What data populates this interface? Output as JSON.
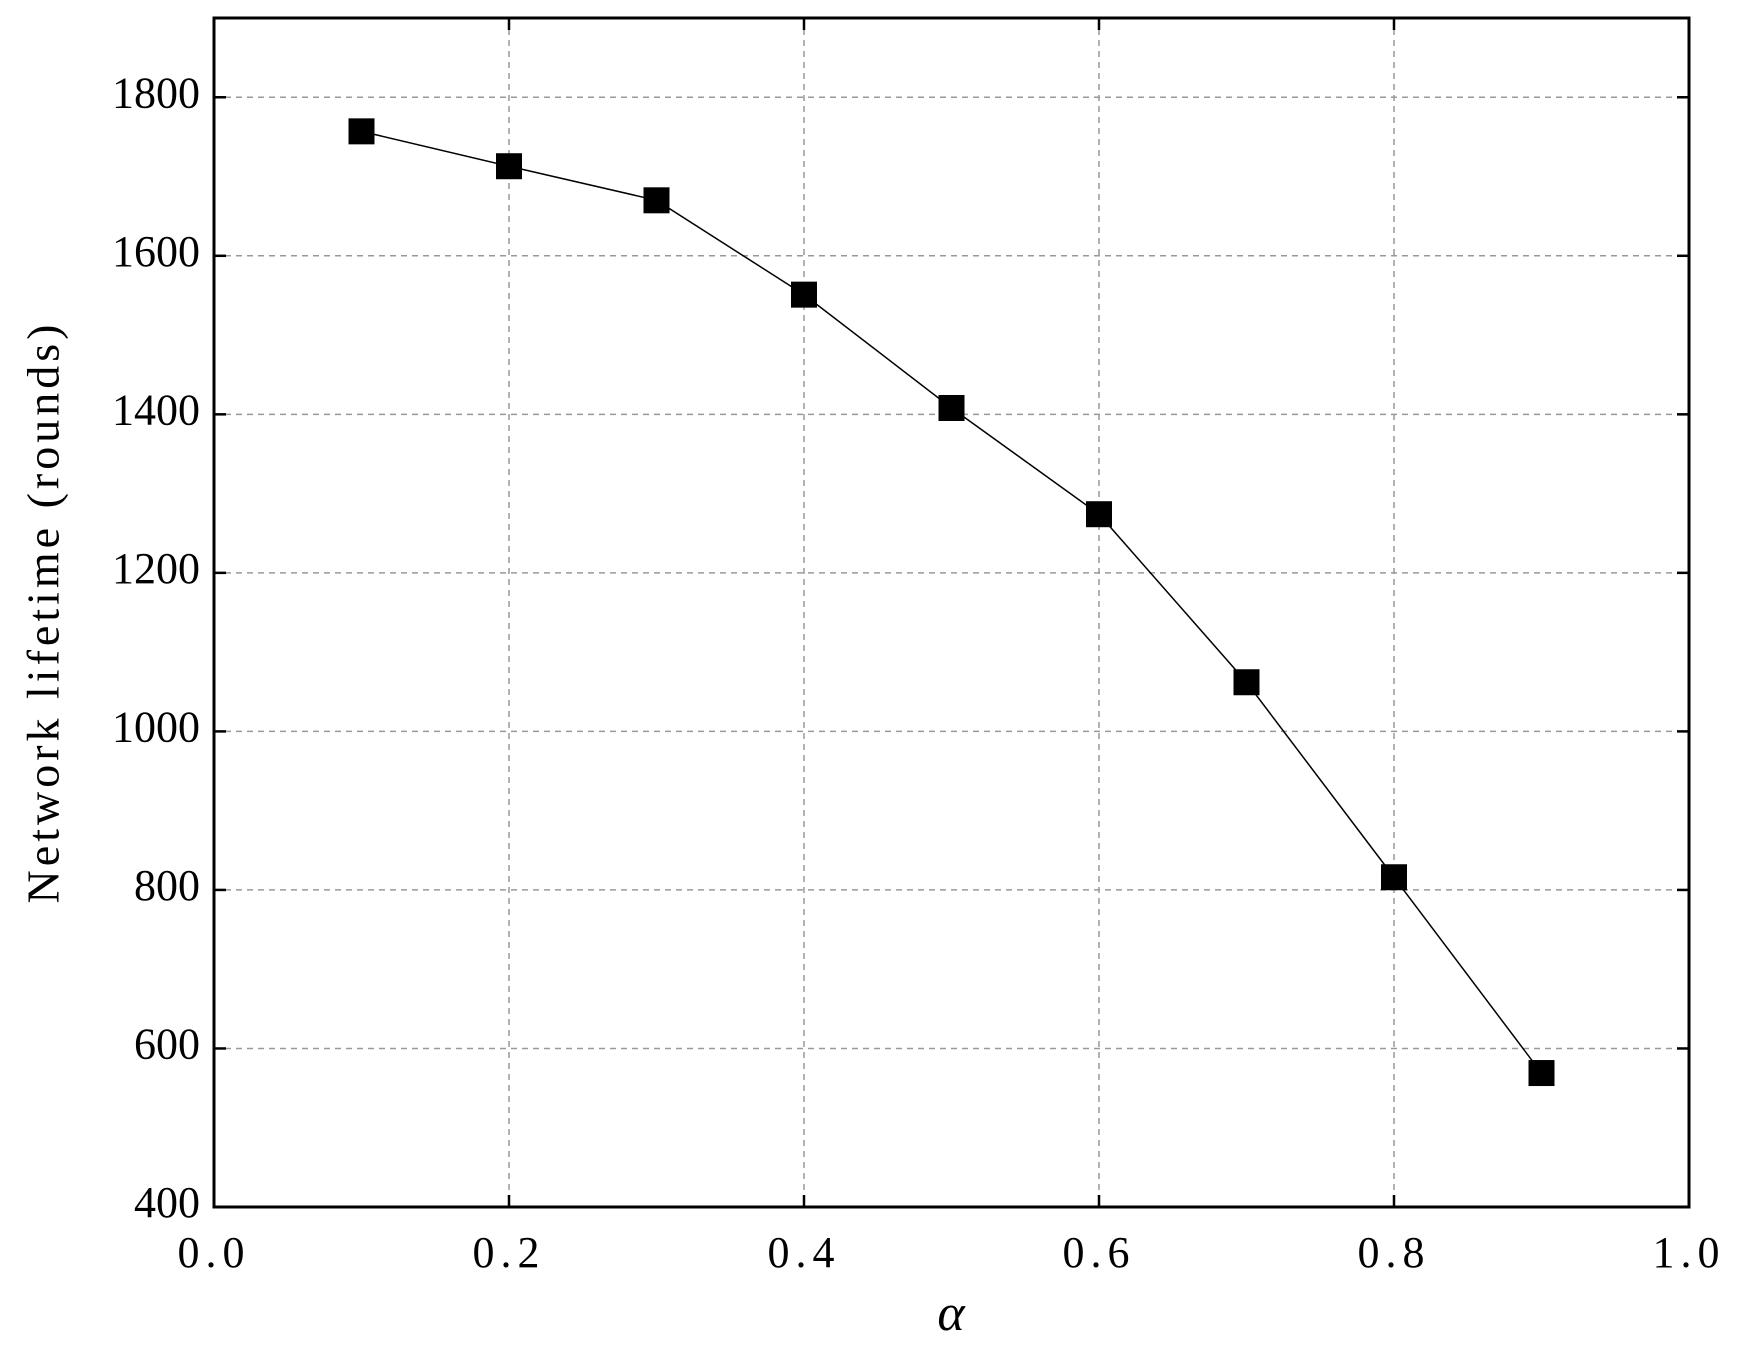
{
  "chart_data": {
    "type": "line",
    "x": [
      0.1,
      0.2,
      0.3,
      0.4,
      0.5,
      0.6,
      0.7,
      0.8,
      0.9
    ],
    "series": [
      {
        "name": "Network lifetime",
        "color": "#000000",
        "values": [
          1757,
          1713,
          1670,
          1551,
          1408,
          1274,
          1062,
          816,
          569
        ]
      }
    ],
    "xlabel": "α",
    "ylabel": "Network lifetime (rounds)",
    "xlim": [
      0,
      1
    ],
    "ylim": [
      400,
      1900
    ],
    "xticks": [
      {
        "value": 0,
        "label": "0.0"
      },
      0.2,
      0.4,
      0.6,
      0.8,
      {
        "value": 1,
        "label": "1.0"
      }
    ],
    "yticks": [
      400,
      600,
      800,
      1000,
      1200,
      1400,
      1600,
      1800
    ],
    "grid": true
  }
}
